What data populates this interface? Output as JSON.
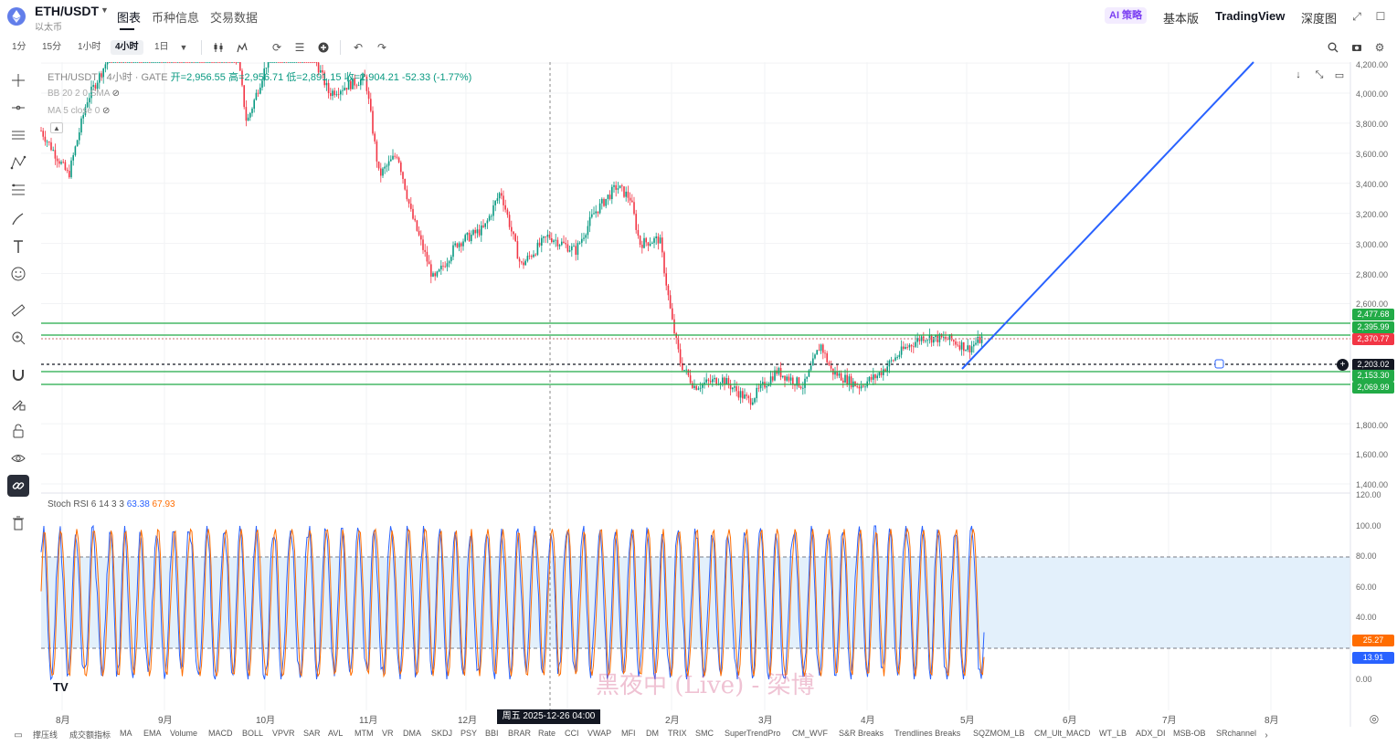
{
  "header": {
    "pair": "ETH/USDT",
    "pair_sub": "以太币",
    "tabs": [
      "图表",
      "币种信息",
      "交易数据"
    ],
    "ai_badge": "AI 策略",
    "right_items": [
      "基本版",
      "TradingView",
      "深度图"
    ]
  },
  "toolbar": {
    "timeframes": [
      "1分",
      "15分",
      "1小时",
      "4小时",
      "1日"
    ],
    "active_timeframe": "4小时"
  },
  "legend": {
    "symbol": "ETH/USDT · 4小时 · GATE",
    "open": "开=2,956.55",
    "high": "高=2,956.71",
    "low": "低=2,891.15",
    "close": "收=2,904.21",
    "change": "-52.33 (-1.77%)",
    "bb": "BB 20 2 0 SMA",
    "ma": "MA 5 close 0"
  },
  "stoch": {
    "label": "Stoch RSI 6 14 3 3",
    "k": "63.38",
    "d": "67.93"
  },
  "price_axis": [
    "4,200.00",
    "4,000.00",
    "3,800.00",
    "3,600.00",
    "3,400.00",
    "3,200.00",
    "3,000.00",
    "2,800.00",
    "2,600.00",
    "1,800.00",
    "1,600.00",
    "1,400.00"
  ],
  "price_tags": [
    {
      "value": "2,477.68",
      "color": "#22ab47"
    },
    {
      "value": "2,395.99",
      "color": "#22ab47"
    },
    {
      "value": "2,370.77",
      "color": "#f23645"
    },
    {
      "value": "2,203.02",
      "color": "#131722"
    },
    {
      "value": "2,153.30",
      "color": "#22ab47"
    },
    {
      "value": "2,069.99",
      "color": "#22ab47"
    }
  ],
  "stoch_axis": [
    "120.00",
    "100.00",
    "80.00",
    "60.00",
    "40.00",
    "0.00"
  ],
  "stoch_tags": [
    {
      "value": "25.27",
      "color": "#ff6d00"
    },
    {
      "value": "13.91",
      "color": "#2962ff"
    }
  ],
  "time_axis": [
    "8月",
    "9月",
    "10月",
    "11月",
    "12月",
    "2月",
    "3月",
    "4月",
    "5月",
    "6月",
    "7月",
    "8月"
  ],
  "crosshair_time": "周五 2025-12-26   04:00",
  "watermark": "黑夜中 (Live) - 梁博",
  "bottom_indicators": [
    "撑压线",
    "成交额指标",
    "MA",
    "EMA",
    "Volume",
    "MACD",
    "BOLL",
    "VPVR",
    "SAR",
    "AVL",
    "MTM",
    "VR",
    "DMA",
    "SKDJ",
    "PSY",
    "BBI",
    "BRAR",
    "Rate",
    "CCI",
    "VWAP",
    "MFI",
    "DM",
    "TRIX",
    "SMC",
    "SuperTrendPro",
    "CM_WVF",
    "S&R Breaks",
    "Trendlines Breaks",
    "SQZMOM_LB",
    "CM_Ult_MACD",
    "WT_LB",
    "ADX_DI",
    "MSB-OB",
    "SRchannel"
  ],
  "colors": {
    "up": "#089981",
    "down": "#f23645",
    "level_line": "#22ab47",
    "trend_line": "#2962ff",
    "stoch_k": "#2962ff",
    "stoch_d": "#ff6d00"
  }
}
